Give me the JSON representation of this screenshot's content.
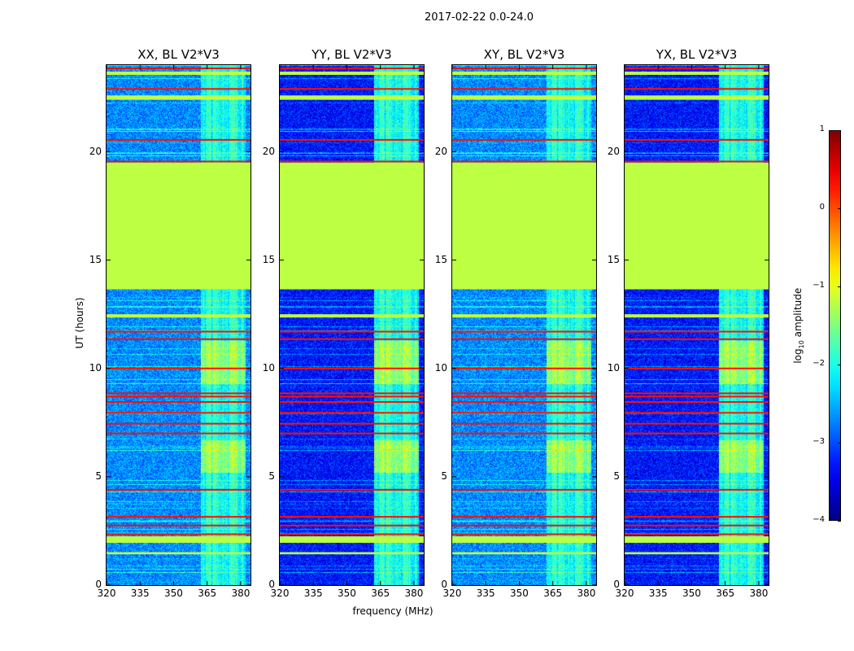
{
  "chart_data": {
    "type": "heatmap",
    "title": "2017-02-22 0.0-24.0",
    "xlabel": "frequency (MHz)",
    "ylabel": "UT (hours)",
    "xlim": [
      320,
      384.4
    ],
    "ylim": [
      0,
      24
    ],
    "xticks": [
      "320",
      "335",
      "350",
      "365",
      "380"
    ],
    "xtick_values": [
      320,
      335,
      350,
      365,
      380
    ],
    "yticks": [
      "0",
      "5",
      "10",
      "15",
      "20"
    ],
    "ytick_values": [
      0,
      5,
      10,
      15,
      20
    ],
    "colorbar": {
      "label": "log10 amplitude",
      "label_main": "log",
      "label_sub": "10",
      "label_rest": " amplitude",
      "colormap": "jet",
      "range": [
        -4,
        1
      ],
      "ticks": [
        "1",
        "0",
        "−1",
        "−2",
        "−3",
        "−4"
      ],
      "tick_values": [
        1,
        0,
        -1,
        -2,
        -3,
        -4
      ]
    },
    "panels": [
      {
        "title": "XX, BL V2*V3",
        "background_level": -2.7
      },
      {
        "title": "YY, BL V2*V3",
        "background_level": -3.3
      },
      {
        "title": "XY, BL V2*V3",
        "background_level": -2.7
      },
      {
        "title": "YX, BL V2*V3",
        "background_level": -3.3
      }
    ],
    "rfi_band_mhz": [
      362,
      382
    ],
    "rfi_band_level": -2.0,
    "bright_rfi_hours": [
      [
        9.3,
        11.3
      ],
      [
        5.2,
        6.7
      ]
    ],
    "flagged_bands_hours": [
      [
        13.65,
        19.5,
        -1.2
      ],
      [
        1.95,
        2.25,
        -1.2
      ],
      [
        1.42,
        1.52,
        -1.2
      ],
      [
        22.4,
        22.6,
        -1.2
      ],
      [
        12.35,
        12.5,
        -1.2
      ],
      [
        23.55,
        23.7,
        -1.2
      ]
    ],
    "strong_rfi_lines_hours": [
      23.85,
      22.9,
      20.55,
      19.55,
      11.7,
      11.35,
      10.0,
      8.85,
      8.7,
      8.45,
      7.95,
      7.45,
      7.0,
      4.4,
      3.15,
      2.75,
      2.35
    ]
  }
}
